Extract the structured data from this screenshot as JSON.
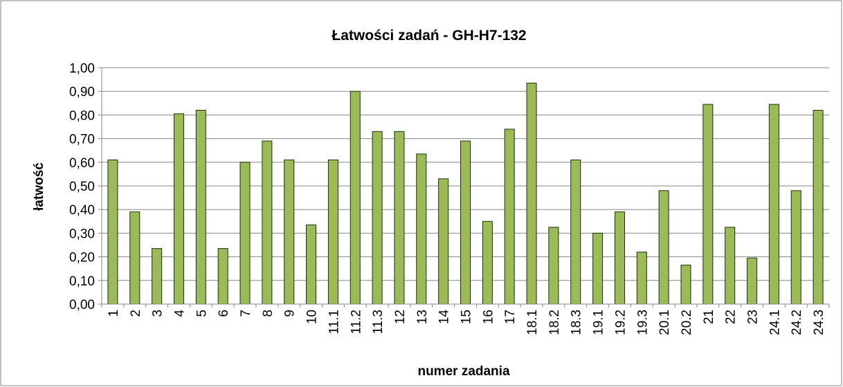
{
  "chart_data": {
    "type": "bar",
    "title": "Łatwości zadań - GH-H7-132",
    "x_label": "numer zadania",
    "y_label": "łatwość",
    "categories": [
      "1",
      "2",
      "3",
      "4",
      "5",
      "6",
      "7",
      "8",
      "9",
      "10",
      "11.1",
      "11.2",
      "11.3",
      "12",
      "13",
      "14",
      "15",
      "16",
      "17",
      "18.1",
      "18.2",
      "18.3",
      "19.1",
      "19.2",
      "19.3",
      "20.1",
      "20.2",
      "21",
      "22",
      "23",
      "24.1",
      "24.2",
      "24.3"
    ],
    "values": [
      0.61,
      0.39,
      0.235,
      0.805,
      0.82,
      0.235,
      0.6,
      0.69,
      0.61,
      0.335,
      0.61,
      0.9,
      0.73,
      0.73,
      0.635,
      0.53,
      0.69,
      0.35,
      0.74,
      0.935,
      0.325,
      0.61,
      0.3,
      0.39,
      0.22,
      0.48,
      0.165,
      0.845,
      0.325,
      0.195,
      0.845,
      0.48,
      0.82
    ],
    "color": "#9bbb59",
    "ylim": [
      0,
      1
    ],
    "yticks": [
      {
        "value": 0,
        "label": "0,00"
      },
      {
        "value": 0.1,
        "label": "0,10"
      },
      {
        "value": 0.2,
        "label": "0,20"
      },
      {
        "value": 0.3,
        "label": "0,30"
      },
      {
        "value": 0.4,
        "label": "0,40"
      },
      {
        "value": 0.5,
        "label": "0,50"
      },
      {
        "value": 0.6,
        "label": "0,60"
      },
      {
        "value": 0.7,
        "label": "0,70"
      },
      {
        "value": 0.8,
        "label": "0,80"
      },
      {
        "value": 0.9,
        "label": "0,90"
      },
      {
        "value": 1,
        "label": "1,00"
      }
    ],
    "grid": true
  }
}
